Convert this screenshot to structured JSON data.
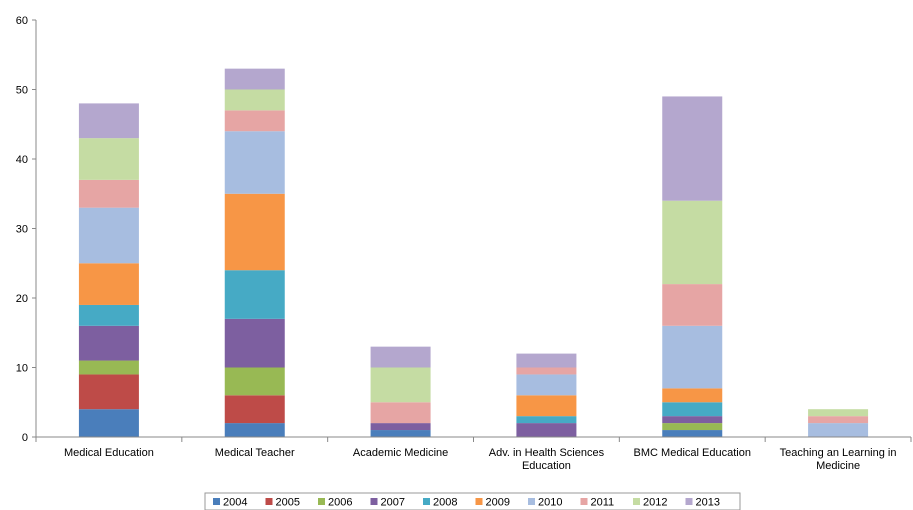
{
  "chart_data": {
    "type": "bar",
    "stacked": true,
    "title": "",
    "xlabel": "",
    "ylabel": "",
    "ylim": [
      0,
      60
    ],
    "yticks": [
      0,
      10,
      20,
      30,
      40,
      50,
      60
    ],
    "grid": false,
    "legend_position": "bottom",
    "categories": [
      [
        "Medical Education"
      ],
      [
        "Medical Teacher"
      ],
      [
        "Academic Medicine"
      ],
      [
        "Adv. in Health Sciences",
        "Education"
      ],
      [
        "BMC Medical Education"
      ],
      [
        "Teaching an Learning in",
        "Medicine"
      ]
    ],
    "series": [
      {
        "name": "2004",
        "color": "#4a7ebb",
        "values": [
          4,
          2,
          1,
          0,
          1,
          0
        ]
      },
      {
        "name": "2005",
        "color": "#be4b48",
        "values": [
          5,
          4,
          0,
          0,
          0,
          0
        ]
      },
      {
        "name": "2006",
        "color": "#98b954",
        "values": [
          2,
          4,
          0,
          0,
          1,
          0
        ]
      },
      {
        "name": "2007",
        "color": "#7d5fa0",
        "values": [
          5,
          7,
          1,
          2,
          1,
          0
        ]
      },
      {
        "name": "2008",
        "color": "#46aac5",
        "values": [
          3,
          7,
          0,
          1,
          2,
          0
        ]
      },
      {
        "name": "2009",
        "color": "#f79646",
        "values": [
          6,
          11,
          0,
          3,
          2,
          0
        ]
      },
      {
        "name": "2010",
        "color": "#a7bde0",
        "values": [
          8,
          9,
          0,
          3,
          9,
          2
        ]
      },
      {
        "name": "2011",
        "color": "#e6a5a4",
        "values": [
          4,
          3,
          3,
          1,
          6,
          1
        ]
      },
      {
        "name": "2012",
        "color": "#c5dca3",
        "values": [
          6,
          3,
          5,
          0,
          12,
          1
        ]
      },
      {
        "name": "2013",
        "color": "#b4a7ce",
        "values": [
          5,
          3,
          3,
          2,
          15,
          0
        ]
      }
    ]
  }
}
